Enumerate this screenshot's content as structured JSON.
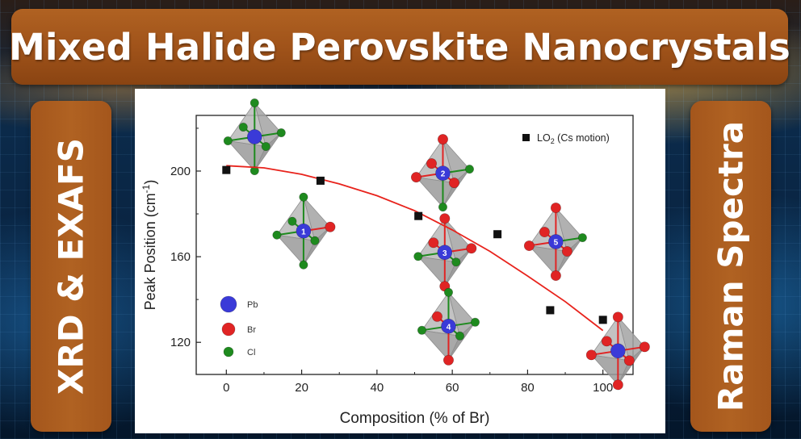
{
  "banner": {
    "title": "Mixed Halide Perovskite Nanocrystals"
  },
  "left_panel": {
    "label": "XRD & EXAFS"
  },
  "right_panel": {
    "label": "Raman Spectra"
  },
  "colors": {
    "banner": "#a0531a",
    "pb": "#3a3ad8",
    "br": "#e02424",
    "cl": "#1e8a1e",
    "fit_line": "#e8231c",
    "points": "#111111"
  },
  "chart_data": {
    "type": "scatter",
    "xlabel": "Composition (% of Br)",
    "ylabel_main": "Peak Position (cm",
    "ylabel_sup": "-1",
    "ylabel_close": ")",
    "xlim": [
      -8,
      108
    ],
    "ylim": [
      105,
      226
    ],
    "xticks": [
      0,
      20,
      40,
      60,
      80,
      100
    ],
    "yticks": [
      120,
      160,
      200
    ],
    "legend": {
      "placement": "top-right",
      "main": "LO",
      "sub": "2",
      "rest": " (Cs motion)"
    },
    "series": [
      {
        "name": "LO2 (Cs motion)",
        "x": [
          0,
          25,
          51,
          72,
          86,
          100
        ],
        "y": [
          200.5,
          195.5,
          179,
          170.5,
          135,
          130.5
        ]
      }
    ],
    "fit": {
      "x": [
        0,
        10,
        20,
        30,
        40,
        50,
        60,
        70,
        80,
        90,
        100
      ],
      "y": [
        202.5,
        201.5,
        198.5,
        194,
        188.5,
        181.5,
        172.5,
        162.5,
        151,
        139,
        125.5
      ]
    },
    "atom_legend": [
      {
        "name": "Pb",
        "color": "#3a3ad8"
      },
      {
        "name": "Br",
        "color": "#e02424"
      },
      {
        "name": "Cl",
        "color": "#1e8a1e"
      }
    ],
    "octahedra": [
      {
        "label": "",
        "x": 7.5,
        "y": 216,
        "type": "cl"
      },
      {
        "label": "1",
        "x": 20.5,
        "y": 172,
        "type": "cl1"
      },
      {
        "label": "2",
        "x": 57.5,
        "y": 199,
        "type": "mix2"
      },
      {
        "label": "3",
        "x": 58,
        "y": 162,
        "type": "mix3"
      },
      {
        "label": "4",
        "x": 59,
        "y": 127.5,
        "type": "mix4"
      },
      {
        "label": "5",
        "x": 87.5,
        "y": 167,
        "type": "mix5"
      },
      {
        "label": "",
        "x": 104,
        "y": 116,
        "type": "br"
      }
    ]
  }
}
